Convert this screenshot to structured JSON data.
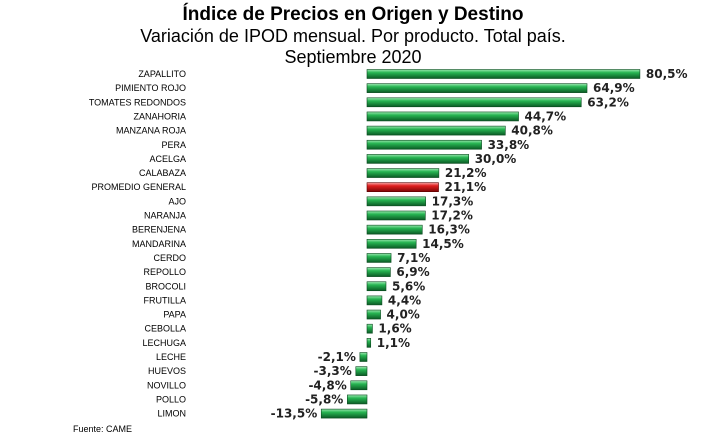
{
  "title": "Índice de Precios en Origen y Destino",
  "subtitle": "Variación de IPOD mensual. Por producto. Total país.",
  "period": "Septiembre 2020",
  "source": "Fuente: CAME",
  "colors": {
    "positive": "#1e9a45",
    "highlight": "#d01818"
  },
  "chart_data": {
    "type": "bar",
    "orientation": "horizontal",
    "highlight_category": "PROMEDIO GENERAL",
    "categories": [
      "ZAPALLITO",
      "PIMIENTO ROJO",
      "TOMATES REDONDOS",
      "ZANAHORIA",
      "MANZANA ROJA",
      "PERA",
      "ACELGA",
      "CALABAZA",
      "PROMEDIO GENERAL",
      "AJO",
      "NARANJA",
      "BERENJENA",
      "MANDARINA",
      "CERDO",
      "REPOLLO",
      "BROCOLI",
      "FRUTILLA",
      "PAPA",
      "CEBOLLA",
      "LECHUGA",
      "LECHE",
      "HUEVOS",
      "NOVILLO",
      "POLLO",
      "LIMON"
    ],
    "values": [
      80.5,
      64.9,
      63.2,
      44.7,
      40.8,
      33.8,
      30.0,
      21.2,
      21.1,
      17.3,
      17.2,
      16.3,
      14.5,
      7.1,
      6.9,
      5.6,
      4.4,
      4.0,
      1.6,
      1.1,
      -2.1,
      -3.3,
      -4.8,
      -5.8,
      -13.5
    ],
    "labels": [
      "80,5%",
      "64,9%",
      "63,2%",
      "44,7%",
      "40,8%",
      "33,8%",
      "30,0%",
      "21,2%",
      "21,1%",
      "17,3%",
      "17,2%",
      "16,3%",
      "14,5%",
      "7,1%",
      "6,9%",
      "5,6%",
      "4,4%",
      "4,0%",
      "1,6%",
      "1,1%",
      "-2,1%",
      "-3,3%",
      "-4,8%",
      "-5,8%",
      "-13,5%"
    ],
    "grid": false,
    "legend": "none"
  }
}
